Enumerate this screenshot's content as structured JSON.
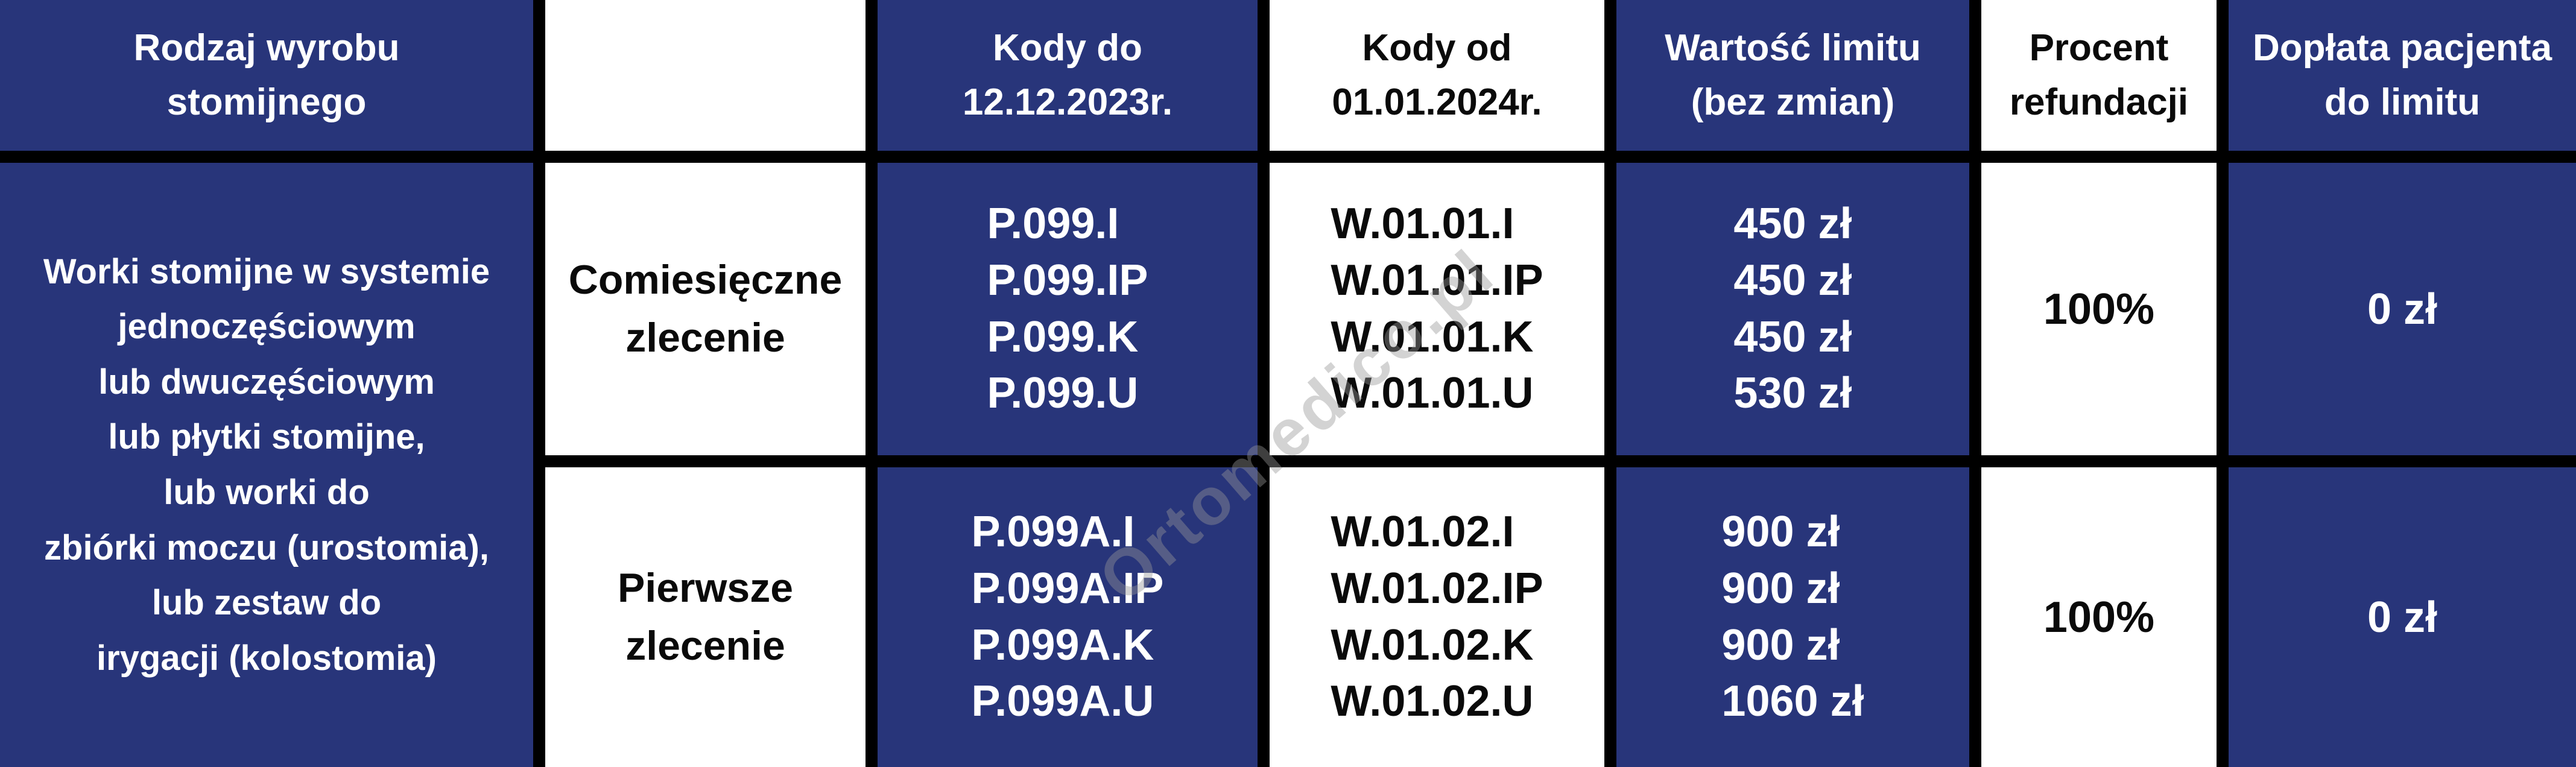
{
  "colors": {
    "navy": "#28357A",
    "white": "#FFFFFF",
    "border": "#000000",
    "text_on_navy": "#FFFFFF",
    "text_on_white": "#0A0A0A",
    "watermark_gray": "#969696"
  },
  "watermark": {
    "text": "Ortomedico.pl"
  },
  "header": {
    "product_type": "Rodzaj wyrobu\nstomijnego",
    "order_type": "",
    "codes_until": "Kody do\n12.12.2023r.",
    "codes_from": "Kody od\n01.01.2024r.",
    "limit_value": "Wartość limitu\n(bez zmian)",
    "refund_percent": "Procent\nrefundacji",
    "patient_copay": "Dopłata pacjenta\ndo limitu"
  },
  "product": {
    "name": "Worki stomijne w systemie\njednoczęściowym\nlub dwuczęściowym\nlub płytki stomijne,\nlub worki do\nzbiórki moczu (urostomia),\nlub zestaw do\nirygacji (kolostomia)"
  },
  "rows": [
    {
      "order_type": "Comiesięczne\nzlecenie",
      "codes_until": "P.099.I\nP.099.IP\nP.099.K\nP.099.U",
      "codes_from": "W.01.01.I\nW.01.01.IP\nW.01.01.K\nW.01.01.U",
      "limit_values": "450 zł\n450 zł\n450 zł\n530 zł",
      "refund_percent": "100%",
      "patient_copay": "0 zł"
    },
    {
      "order_type": "Pierwsze\nzlecenie",
      "codes_until": "P.099A.I\nP.099A.IP\nP.099A.K\nP.099A.U",
      "codes_from": "W.01.02.I\nW.01.02.IP\nW.01.02.K\nW.01.02.U",
      "limit_values": "900 zł\n900 zł\n900 zł\n1060 zł",
      "refund_percent": "100%",
      "patient_copay": "0 zł"
    }
  ]
}
